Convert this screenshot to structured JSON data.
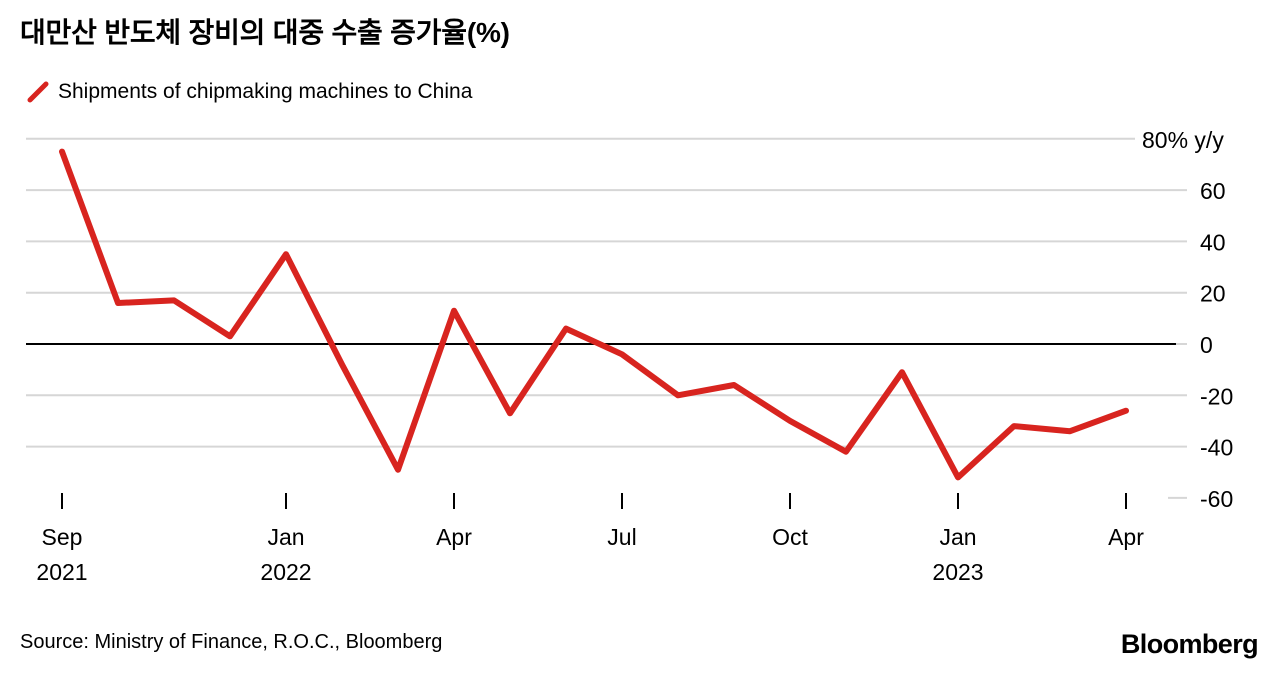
{
  "header": {
    "title": "대만산 반도체 장비의 대중 수출 증가율(%)",
    "legend": {
      "label": "Shipments of chipmaking machines to China"
    }
  },
  "chart_data": {
    "type": "line",
    "title": "대만산 반도체 장비의 대중 수출 증가율(%)",
    "unit": "% y/y",
    "grid": true,
    "legend_position": "top-left",
    "ylim": [
      -60,
      80
    ],
    "x": [
      "Sep 2021",
      "Oct 2021",
      "Nov 2021",
      "Dec 2021",
      "Jan 2022",
      "Feb 2022",
      "Mar 2022",
      "Apr 2022",
      "May 2022",
      "Jun 2022",
      "Jul 2022",
      "Aug 2022",
      "Sep 2022",
      "Oct 2022",
      "Nov 2022",
      "Dec 2022",
      "Jan 2023",
      "Feb 2023",
      "Mar 2023",
      "Apr 2023"
    ],
    "series": [
      {
        "name": "Shipments of chipmaking machines to China",
        "values": [
          75,
          16,
          17,
          3,
          35,
          -8,
          -49,
          13,
          -27,
          6,
          -4,
          -20,
          -16,
          -30,
          -42,
          -11,
          -52,
          -32,
          -34,
          -26
        ]
      }
    ],
    "yticks": [
      {
        "value": 80,
        "label": "80% y/y"
      },
      {
        "value": 60,
        "label": "60"
      },
      {
        "value": 40,
        "label": "40"
      },
      {
        "value": 20,
        "label": "20"
      },
      {
        "value": 0,
        "label": "0"
      },
      {
        "value": -20,
        "label": "-20"
      },
      {
        "value": -40,
        "label": "-40"
      },
      {
        "value": -60,
        "label": "-60"
      }
    ],
    "xticks": [
      {
        "index": 0,
        "month": "Sep",
        "year": "2021"
      },
      {
        "index": 4,
        "month": "Jan",
        "year": "2022"
      },
      {
        "index": 7,
        "month": "Apr",
        "year": ""
      },
      {
        "index": 10,
        "month": "Jul",
        "year": ""
      },
      {
        "index": 13,
        "month": "Oct",
        "year": ""
      },
      {
        "index": 16,
        "month": "Jan",
        "year": "2023"
      },
      {
        "index": 19,
        "month": "Apr",
        "year": ""
      }
    ],
    "colors": {
      "line": "#d8241f",
      "zero_axis": "#000000",
      "gridline": "#d6d6d6",
      "text": "#000000"
    }
  },
  "footer": {
    "source": "Source: Ministry of Finance, R.O.C., Bloomberg",
    "logo": "Bloomberg"
  }
}
